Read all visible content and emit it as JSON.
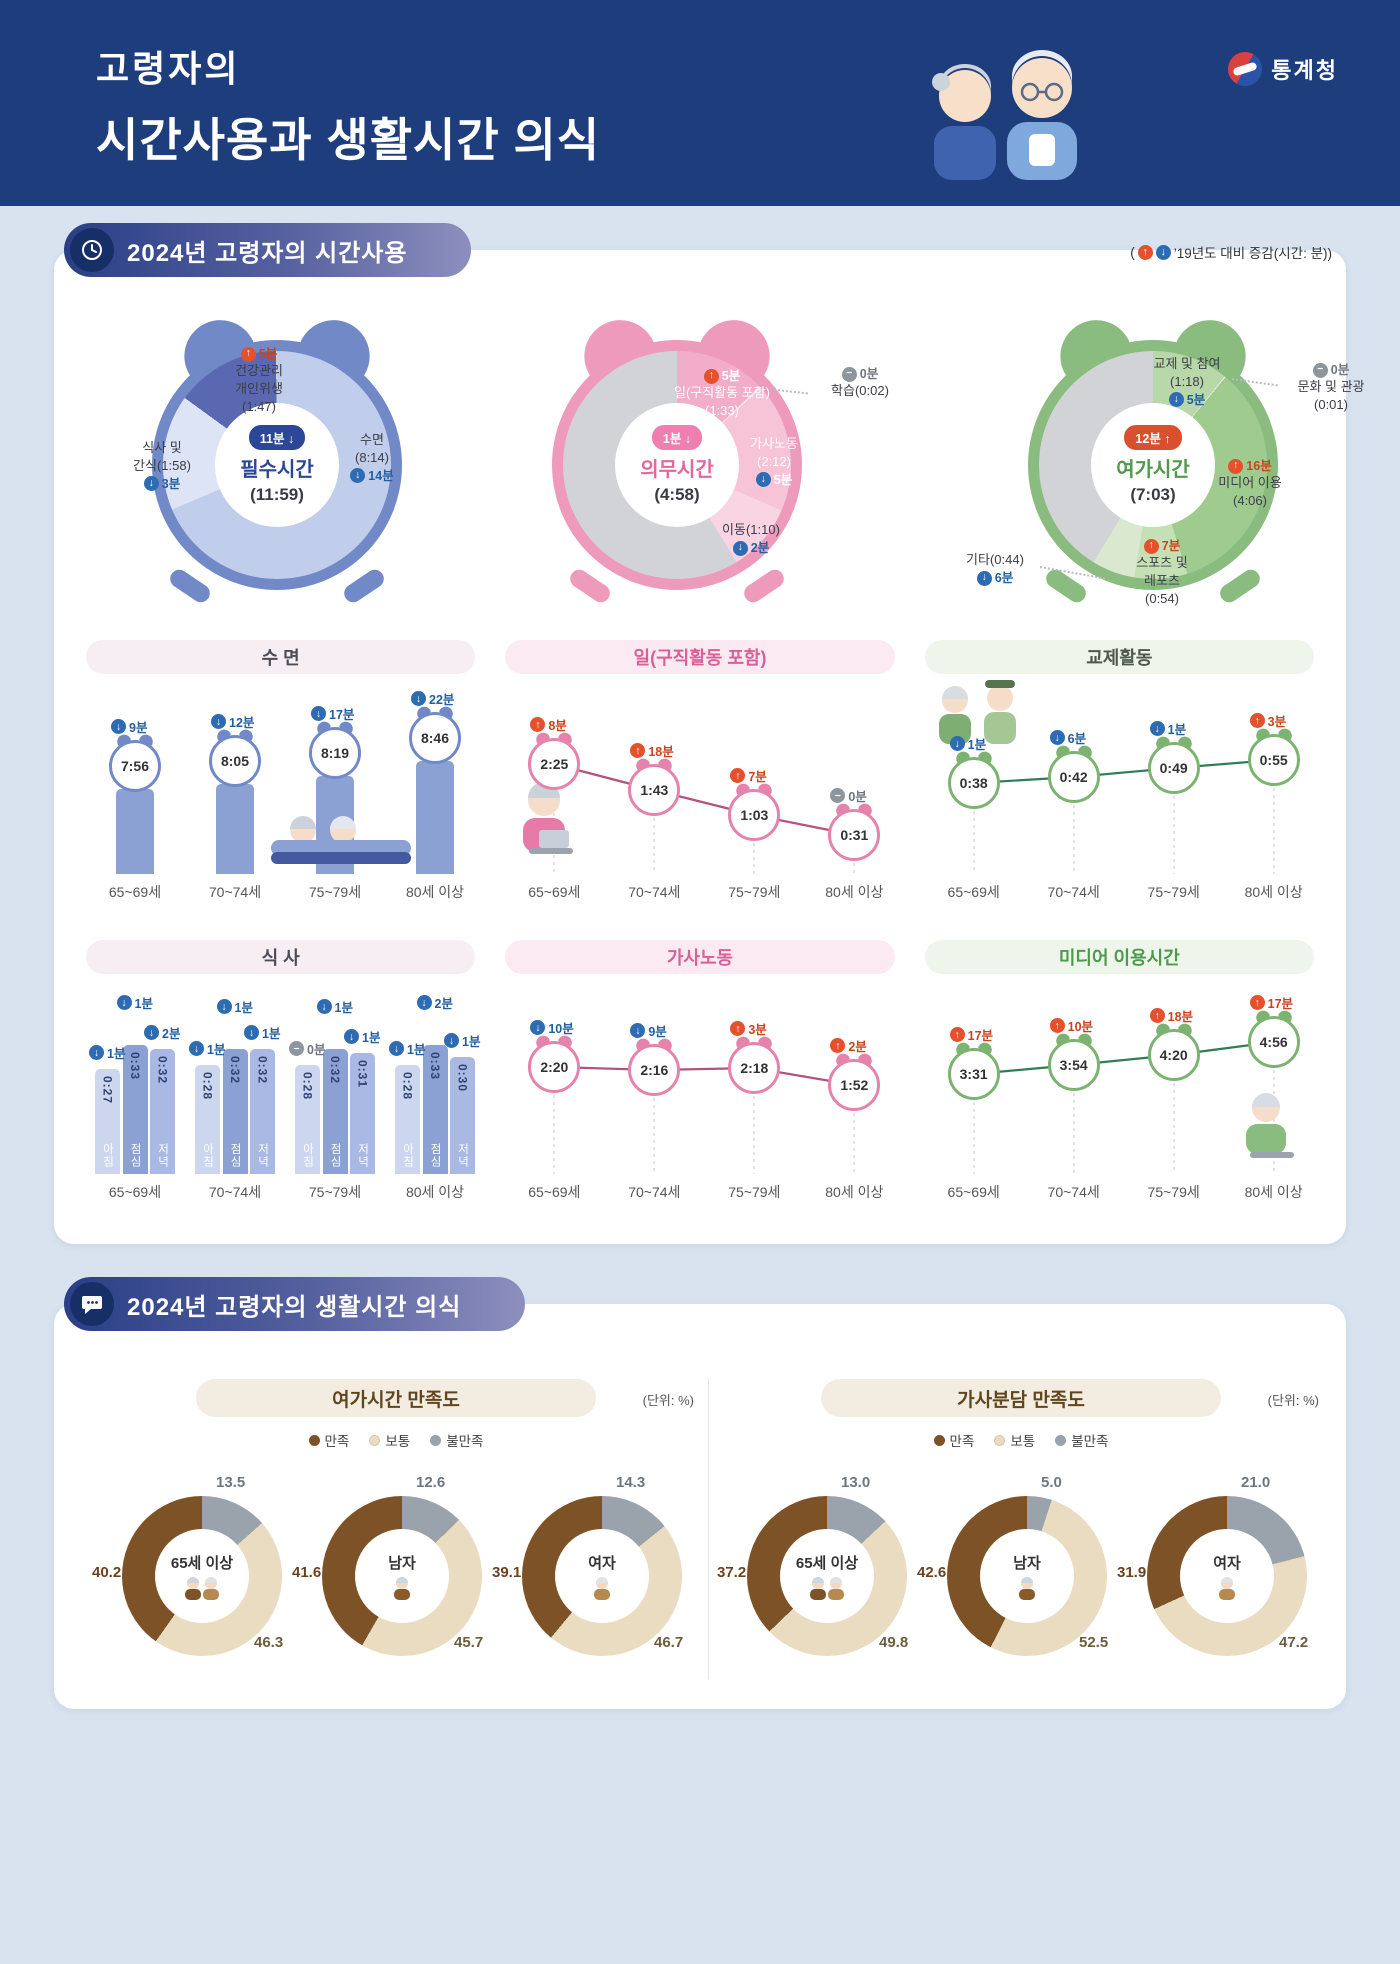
{
  "header": {
    "title_line1": "고령자의",
    "title_line2": "시간사용과 생활시간 의식",
    "agency": "통계청"
  },
  "section_time_use": {
    "title": "2024년 고령자의 시간사용",
    "note_open": "(",
    "note_text": "’19년도 대비 증감(시간: 분))"
  },
  "section_perception": {
    "title": "2024년 고령자의 생활시간 의식"
  },
  "age_categories": [
    "65~69세",
    "70~74세",
    "75~79세",
    "80세 이상"
  ],
  "chart_data": [
    {
      "id": "essential",
      "type": "pie",
      "variant": "clock-donut",
      "title": "필수시간",
      "total": "(11:59)",
      "change": {
        "dir": "down",
        "text": "11분"
      },
      "dial_minutes": 720,
      "body_color": "#7289c8",
      "center_pill_color": "#2c4795",
      "name_color": "#2c4795",
      "rest_color": "#d2d3d6",
      "slices": [
        {
          "name": "수면",
          "time": "8:14",
          "minutes": 494,
          "color": "#c0cdeb",
          "change": {
            "dir": "down",
            "text": "14분"
          },
          "label_lines": [
            "수면",
            "(8:14)"
          ],
          "badge_pos": "bottom",
          "text_color": "dark"
        },
        {
          "name": "식사 및 간식",
          "time": "1:58",
          "minutes": 118,
          "color": "#dde4f5",
          "change": {
            "dir": "down",
            "text": "3분"
          },
          "label_lines": [
            "식사 및",
            "간식(1:58)"
          ],
          "badge_pos": "bottom",
          "text_color": "dark"
        },
        {
          "name": "건강관리 개인위생",
          "time": "1:47",
          "minutes": 107,
          "color": "#5a68b2",
          "change": {
            "dir": "up",
            "text": "5분"
          },
          "label_lines": [
            "건강관리",
            "개인위생",
            "(1:47)"
          ],
          "badge_pos": "top",
          "text_color": "dark"
        }
      ]
    },
    {
      "id": "obligatory",
      "type": "pie",
      "variant": "clock-donut",
      "title": "의무시간",
      "total": "(4:58)",
      "change": {
        "dir": "down",
        "text": "1분"
      },
      "dial_minutes": 720,
      "body_color": "#ee9abb",
      "center_pill_color": "#ee7fae",
      "name_color": "#e2679b",
      "rest_color": "#d2d3d6",
      "slices": [
        {
          "name": "일(구직활동 포함)",
          "time": "1:33",
          "minutes": 93,
          "color": "#f2aec8",
          "change": {
            "dir": "up",
            "text": "5분"
          },
          "label_lines": [
            "일(구직활동 포함)",
            "(1:33)"
          ],
          "badge_pos": "top",
          "text_color": "light"
        },
        {
          "name": "학습",
          "time": "0:02",
          "minutes": 2,
          "color": "#fbe3ed",
          "change": {
            "dir": "zero",
            "text": "0분"
          },
          "label_lines": [
            "학습(0:02)"
          ],
          "badge_pos": "top",
          "text_color": "dark"
        },
        {
          "name": "가사노동",
          "time": "2:12",
          "minutes": 132,
          "color": "#f6c3d7",
          "change": {
            "dir": "down",
            "text": "5분"
          },
          "label_lines": [
            "가사노동",
            "(2:12)"
          ],
          "badge_pos": "bottom",
          "text_color": "light"
        },
        {
          "name": "이동",
          "time": "1:10",
          "minutes": 70,
          "color": "#f9d4e2",
          "change": {
            "dir": "down",
            "text": "2분"
          },
          "label_lines": [
            "이동(1:10)"
          ],
          "badge_pos": "bottom",
          "text_color": "dark"
        }
      ]
    },
    {
      "id": "leisure",
      "type": "pie",
      "variant": "clock-donut",
      "title": "여가시간",
      "total": "(7:03)",
      "change": {
        "dir": "up",
        "text": "12분"
      },
      "dial_minutes": 720,
      "body_color": "#8abc80",
      "center_pill_color": "#d8502e",
      "name_color": "#4f9a49",
      "rest_color": "#d2d3d6",
      "slices": [
        {
          "name": "교제 및 참여",
          "time": "1:18",
          "minutes": 78,
          "color": "#b9d8a9",
          "change": {
            "dir": "down",
            "text": "5분"
          },
          "label_lines": [
            "교제 및 참여",
            "(1:18)"
          ],
          "badge_pos": "bottom",
          "text_color": "dark"
        },
        {
          "name": "문화 및 관광",
          "time": "0:01",
          "minutes": 1,
          "color": "#e8f1de",
          "change": {
            "dir": "zero",
            "text": "0분"
          },
          "label_lines": [
            "문화 및 관광",
            "(0:01)"
          ],
          "badge_pos": "top",
          "text_color": "dark"
        },
        {
          "name": "미디어 이용",
          "time": "4:06",
          "minutes": 246,
          "color": "#9fcc8e",
          "change": {
            "dir": "up",
            "text": "16분"
          },
          "label_lines": [
            "미디어 이용",
            "(4:06)"
          ],
          "badge_pos": "top",
          "text_color": "dark"
        },
        {
          "name": "스포츠 및 레포츠",
          "time": "0:54",
          "minutes": 54,
          "color": "#c6e0b6",
          "change": {
            "dir": "up",
            "text": "7분"
          },
          "label_lines": [
            "스포츠 및",
            "레포츠",
            "(0:54)"
          ],
          "badge_pos": "top",
          "text_color": "dark"
        },
        {
          "name": "기타",
          "time": "0:44",
          "minutes": 44,
          "color": "#d9e8ce",
          "change": {
            "dir": "down",
            "text": "6분"
          },
          "label_lines": [
            "기타(0:44)"
          ],
          "badge_pos": "bottom",
          "text_color": "dark"
        }
      ]
    },
    {
      "id": "sleep",
      "type": "bar",
      "title": "수 면",
      "theme": "blue",
      "title_bg": "#f6eef3",
      "title_color": "#4c4c59",
      "categories": [
        "65~69세",
        "70~74세",
        "75~79세",
        "80세 이상"
      ],
      "values": [
        "7:56",
        "8:05",
        "8:19",
        "8:46"
      ],
      "minutes": [
        476,
        485,
        499,
        526
      ],
      "changes": [
        {
          "dir": "down",
          "text": "9분"
        },
        {
          "dir": "down",
          "text": "12분"
        },
        {
          "dir": "down",
          "text": "17분"
        },
        {
          "dir": "down",
          "text": "22분"
        }
      ]
    },
    {
      "id": "work",
      "type": "line",
      "title": "일(구직활동 포함)",
      "theme": "pink",
      "title_bg": "#fceaf2",
      "title_color": "#d95f97",
      "categories": [
        "65~69세",
        "70~74세",
        "75~79세",
        "80세 이상"
      ],
      "values": [
        "2:25",
        "1:43",
        "1:03",
        "0:31"
      ],
      "minutes": [
        145,
        103,
        63,
        31
      ],
      "changes": [
        {
          "dir": "up",
          "text": "8분"
        },
        {
          "dir": "up",
          "text": "18분"
        },
        {
          "dir": "up",
          "text": "7분"
        },
        {
          "dir": "zero",
          "text": "0분"
        }
      ]
    },
    {
      "id": "social",
      "type": "line",
      "title": "교제활동",
      "theme": "green",
      "title_bg": "#eef5ea",
      "title_color": "#4c584c",
      "categories": [
        "65~69세",
        "70~74세",
        "75~79세",
        "80세 이상"
      ],
      "values": [
        "0:38",
        "0:42",
        "0:49",
        "0:55"
      ],
      "minutes": [
        38,
        42,
        49,
        55
      ],
      "changes": [
        {
          "dir": "down",
          "text": "1분"
        },
        {
          "dir": "down",
          "text": "6분"
        },
        {
          "dir": "down",
          "text": "1분"
        },
        {
          "dir": "up",
          "text": "3분"
        }
      ]
    },
    {
      "id": "meals",
      "type": "bar",
      "variant": "grouped",
      "title": "식 사",
      "theme": "blue",
      "title_bg": "#f6eef3",
      "title_color": "#4c4c59",
      "categories": [
        "65~69세",
        "70~74세",
        "75~79세",
        "80세 이상"
      ],
      "bar_colors": [
        "#ccd6ef",
        "#8ba1d4",
        "#a9b9e4"
      ],
      "series": [
        {
          "name": "아침",
          "values": [
            "0:27",
            "0:28",
            "0:28",
            "0:28"
          ],
          "minutes": [
            27,
            28,
            28,
            28
          ],
          "changes": [
            {
              "dir": "down",
              "text": "1분"
            },
            {
              "dir": "down",
              "text": "1분"
            },
            {
              "dir": "zero",
              "text": "0분"
            },
            {
              "dir": "down",
              "text": "1분"
            }
          ]
        },
        {
          "name": "점심",
          "values": [
            "0:33",
            "0:32",
            "0:32",
            "0:33"
          ],
          "minutes": [
            33,
            32,
            32,
            33
          ],
          "changes": [
            {
              "dir": "down",
              "text": "1분"
            },
            {
              "dir": "down",
              "text": "1분"
            },
            {
              "dir": "down",
              "text": "1분"
            },
            {
              "dir": "down",
              "text": "2분"
            }
          ]
        },
        {
          "name": "저녁",
          "values": [
            "0:32",
            "0:32",
            "0:31",
            "0:30"
          ],
          "minutes": [
            32,
            32,
            31,
            30
          ],
          "changes": [
            {
              "dir": "down",
              "text": "2분"
            },
            {
              "dir": "down",
              "text": "1분"
            },
            {
              "dir": "down",
              "text": "1분"
            },
            {
              "dir": "down",
              "text": "1분"
            }
          ]
        }
      ]
    },
    {
      "id": "housework",
      "type": "line",
      "title": "가사노동",
      "theme": "pink",
      "title_bg": "#fceaf2",
      "title_color": "#d95f97",
      "categories": [
        "65~69세",
        "70~74세",
        "75~79세",
        "80세 이상"
      ],
      "values": [
        "2:20",
        "2:16",
        "2:18",
        "1:52"
      ],
      "minutes": [
        140,
        136,
        138,
        112
      ],
      "changes": [
        {
          "dir": "down",
          "text": "10분"
        },
        {
          "dir": "down",
          "text": "9분"
        },
        {
          "dir": "up",
          "text": "3분"
        },
        {
          "dir": "up",
          "text": "2분"
        }
      ]
    },
    {
      "id": "media",
      "type": "line",
      "title": "미디어 이용시간",
      "theme": "green",
      "title_bg": "#eef5ea",
      "title_color": "#4c9a4c",
      "categories": [
        "65~69세",
        "70~74세",
        "75~79세",
        "80세 이상"
      ],
      "values": [
        "3:31",
        "3:54",
        "4:20",
        "4:56"
      ],
      "minutes": [
        211,
        234,
        260,
        296
      ],
      "changes": [
        {
          "dir": "up",
          "text": "17분"
        },
        {
          "dir": "up",
          "text": "10분"
        },
        {
          "dir": "up",
          "text": "18분"
        },
        {
          "dir": "up",
          "text": "17분"
        }
      ]
    },
    {
      "id": "leisure-satisfaction",
      "type": "pie-group",
      "title": "여가시간 만족도",
      "unit": "(단위: %)",
      "legend": [
        {
          "label": "만족",
          "color": "#7d5226"
        },
        {
          "label": "보통",
          "color": "#eadcc1"
        },
        {
          "label": "불만족",
          "color": "#9aa2ab"
        }
      ],
      "donuts": [
        {
          "label": "65세 이상",
          "icon": "couple",
          "values": [
            40.2,
            46.3,
            13.5
          ]
        },
        {
          "label": "남자",
          "icon": "man",
          "values": [
            41.6,
            45.7,
            12.6
          ]
        },
        {
          "label": "여자",
          "icon": "woman",
          "values": [
            39.1,
            46.7,
            14.3
          ]
        }
      ]
    },
    {
      "id": "housework-satisfaction",
      "type": "pie-group",
      "title": "가사분담 만족도",
      "unit": "(단위: %)",
      "legend": [
        {
          "label": "만족",
          "color": "#7d5226"
        },
        {
          "label": "보통",
          "color": "#eadcc1"
        },
        {
          "label": "불만족",
          "color": "#9aa2ab"
        }
      ],
      "donuts": [
        {
          "label": "65세 이상",
          "icon": "couple",
          "values": [
            37.2,
            49.8,
            13.0
          ]
        },
        {
          "label": "남자",
          "icon": "man",
          "values": [
            42.6,
            52.5,
            5.0
          ]
        },
        {
          "label": "여자",
          "icon": "woman",
          "values": [
            31.9,
            47.2,
            21.0
          ]
        }
      ]
    }
  ]
}
